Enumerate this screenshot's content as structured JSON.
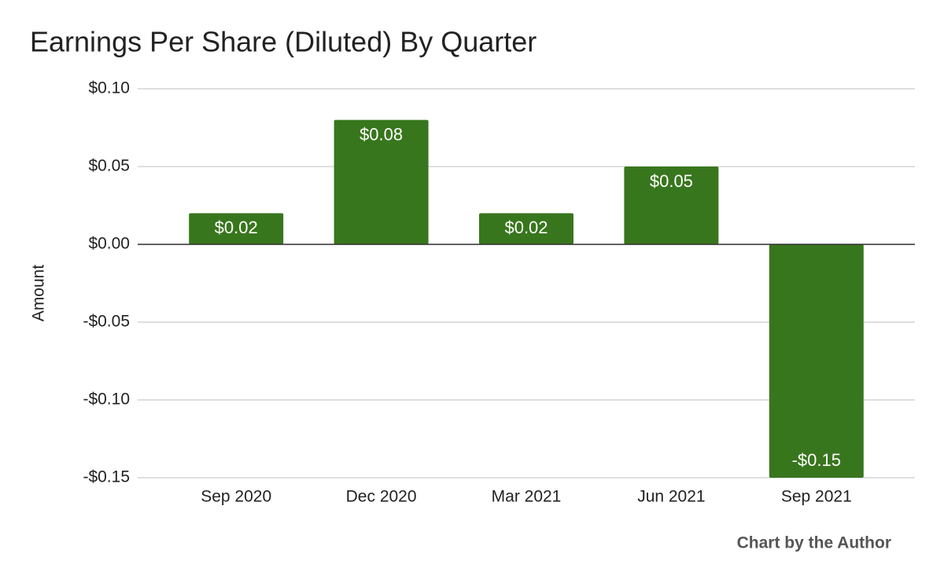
{
  "chart_data": {
    "type": "bar",
    "title": "Earnings Per Share (Diluted) By Quarter",
    "y_label": "Amount",
    "annotation": "Chart by the Author",
    "categories": [
      "Sep 2020",
      "Dec 2020",
      "Mar 2021",
      "Jun 2021",
      "Sep 2021"
    ],
    "values": [
      0.02,
      0.08,
      0.02,
      0.05,
      -0.15
    ],
    "value_labels": [
      "$0.02",
      "$0.08",
      "$0.02",
      "$0.05",
      "-$0.15"
    ],
    "color": "#38761d",
    "ylim": [
      -0.15,
      0.1
    ],
    "yticks": [
      {
        "value": -0.15,
        "label": "-$0.15"
      },
      {
        "value": -0.1,
        "label": "-$0.10"
      },
      {
        "value": -0.05,
        "label": "-$0.05"
      },
      {
        "value": 0,
        "label": "$0.00"
      },
      {
        "value": 0.05,
        "label": "$0.05"
      },
      {
        "value": 0.1,
        "label": "$0.10"
      }
    ],
    "grid": true
  }
}
